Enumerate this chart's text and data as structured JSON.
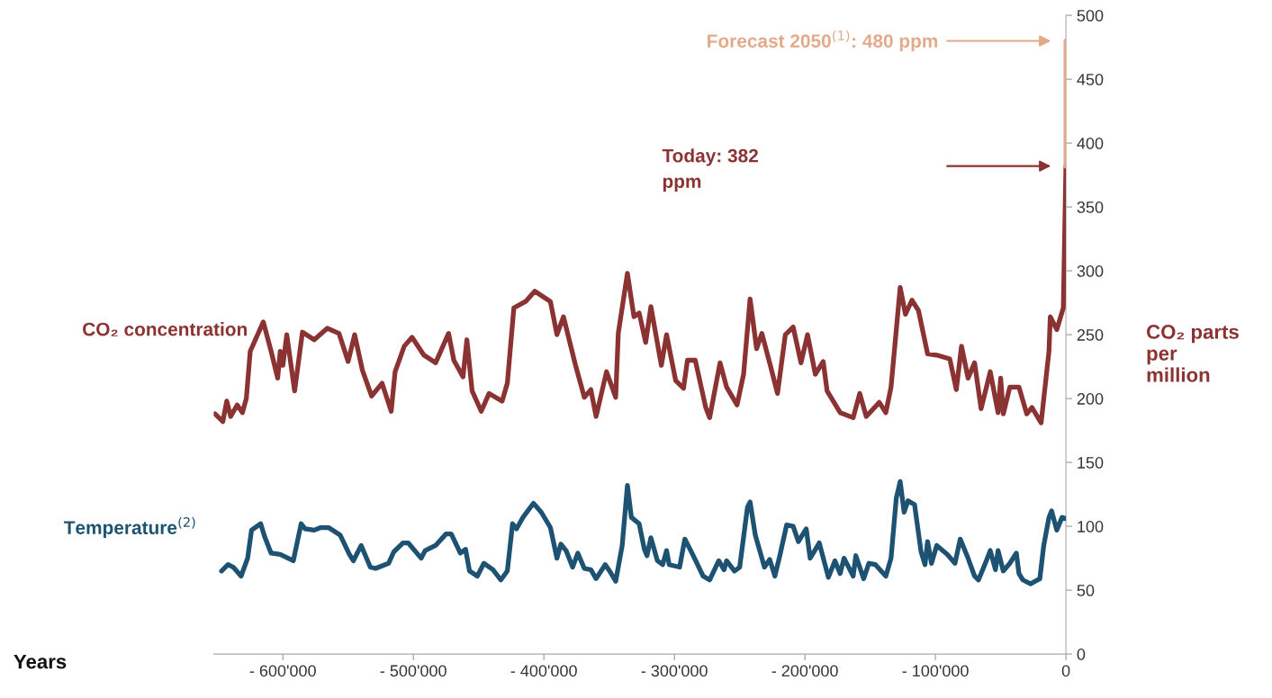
{
  "chart_data": {
    "type": "line",
    "ylabel": "CO₂ parts per million",
    "xlim": [
      -653000,
      0
    ],
    "xticks": [
      {
        "value": -600000,
        "label": "- 600'000"
      },
      {
        "value": -500000,
        "label": "- 500'000"
      },
      {
        "value": -400000,
        "label": "- 400'000"
      },
      {
        "value": -300000,
        "label": "- 300'000"
      },
      {
        "value": -200000,
        "label": "- 200'000"
      },
      {
        "value": -100000,
        "label": "- 100'000"
      },
      0
    ],
    "ylim": [
      0,
      500
    ],
    "yticks": [
      0,
      50,
      100,
      150,
      200,
      250,
      300,
      350,
      400,
      450,
      500
    ],
    "grid": false,
    "legend": false,
    "marker": "none",
    "line_style": "solid",
    "series": [
      {
        "name": "CO₂ concentration",
        "color": "#8b3232",
        "x": [
          -652000,
          -646000,
          -643000,
          -640000,
          -635000,
          -631000,
          -628000,
          -625000,
          -615000,
          -609000,
          -604000,
          -602000,
          -600000,
          -597000,
          -591000,
          -585000,
          -576000,
          -566000,
          -557000,
          -550000,
          -545000,
          -539000,
          -532000,
          -524000,
          -517000,
          -514000,
          -507000,
          -501000,
          -492000,
          -483000,
          -473000,
          -469000,
          -462000,
          -459000,
          -455000,
          -448000,
          -442000,
          -432000,
          -428000,
          -423000,
          -414000,
          -407000,
          -395000,
          -390000,
          -385000,
          -376000,
          -369000,
          -364000,
          -360000,
          -352000,
          -345000,
          -343000,
          -336000,
          -331000,
          -327000,
          -322000,
          -318000,
          -310000,
          -306000,
          -299000,
          -293000,
          -290000,
          -284000,
          -276000,
          -273000,
          -268000,
          -265000,
          -260000,
          -252000,
          -247000,
          -242000,
          -237000,
          -233000,
          -226000,
          -221000,
          -215000,
          -209000,
          -203000,
          -198000,
          -192000,
          -186000,
          -183000,
          -173000,
          -163000,
          -158000,
          -153000,
          -143000,
          -138000,
          -134000,
          -127000,
          -123000,
          -118000,
          -113000,
          -106000,
          -99000,
          -89000,
          -84000,
          -80000,
          -75000,
          -70000,
          -65000,
          -58000,
          -52000,
          -50000,
          -48000,
          -43000,
          -36000,
          -30000,
          -26000,
          -19000,
          -13000,
          -12000,
          -7000,
          -2000,
          0
        ],
        "values": [
          188,
          182,
          198,
          186,
          195,
          189,
          200,
          237,
          260,
          237,
          216,
          237,
          226,
          250,
          206,
          252,
          246,
          255,
          251,
          229,
          250,
          222,
          202,
          212,
          190,
          221,
          241,
          248,
          234,
          228,
          251,
          230,
          217,
          246,
          206,
          190,
          204,
          198,
          212,
          271,
          276,
          284,
          276,
          250,
          264,
          227,
          201,
          207,
          186,
          221,
          201,
          251,
          298,
          264,
          267,
          244,
          272,
          226,
          250,
          214,
          208,
          230,
          230,
          193,
          185,
          212,
          228,
          209,
          195,
          219,
          278,
          239,
          251,
          224,
          204,
          250,
          256,
          228,
          250,
          219,
          229,
          206,
          189,
          185,
          204,
          186,
          197,
          189,
          209,
          287,
          266,
          277,
          269,
          235,
          234,
          231,
          207,
          241,
          216,
          228,
          192,
          221,
          189,
          216,
          188,
          209,
          209,
          188,
          193,
          181,
          237,
          264,
          254,
          271,
          382
        ]
      },
      {
        "color": "#e2aa8a",
        "x": [
          0,
          0
        ],
        "values": [
          382,
          480
        ]
      },
      {
        "name": "Temperature$^{(2)}$",
        "color": "#1e5272",
        "x": [
          -647000,
          -642000,
          -638000,
          -632000,
          -627000,
          -624000,
          -617000,
          -614000,
          -609000,
          -602000,
          -592000,
          -586000,
          -583000,
          -576000,
          -571000,
          -565000,
          -556000,
          -549000,
          -546000,
          -540000,
          -533000,
          -529000,
          -519000,
          -515000,
          -508000,
          -504000,
          -494000,
          -491000,
          -483000,
          -475000,
          -471000,
          -464000,
          -460000,
          -457000,
          -451000,
          -446000,
          -439000,
          -433000,
          -428000,
          -424000,
          -421000,
          -416000,
          -408000,
          -402000,
          -395000,
          -390000,
          -387000,
          -383000,
          -378000,
          -374000,
          -369000,
          -364000,
          -360000,
          -353000,
          -349000,
          -345000,
          -340000,
          -336000,
          -333000,
          -327000,
          -323000,
          -321000,
          -318000,
          -313000,
          -309000,
          -306000,
          -304000,
          -296000,
          -292000,
          -286000,
          -278000,
          -273000,
          -266000,
          -262000,
          -260000,
          -254000,
          -250000,
          -244000,
          -242000,
          -238000,
          -231000,
          -227000,
          -223000,
          -219000,
          -214000,
          -209000,
          -205000,
          -199000,
          -196000,
          -189000,
          -182000,
          -177000,
          -173000,
          -170000,
          -163000,
          -161000,
          -155000,
          -151000,
          -146000,
          -138000,
          -134000,
          -130000,
          -127000,
          -124000,
          -121000,
          -116000,
          -111000,
          -108000,
          -106000,
          -103000,
          -99000,
          -91000,
          -85000,
          -81000,
          -75000,
          -70000,
          -67000,
          -61000,
          -58000,
          -54000,
          -52000,
          -48000,
          -43000,
          -38000,
          -36000,
          -33000,
          -27000,
          -20000,
          -17000,
          -13000,
          -11000,
          -7000,
          -3000,
          0
        ],
        "values": [
          65,
          70,
          68,
          61,
          75,
          97,
          102,
          92,
          79,
          78,
          73,
          102,
          98,
          97,
          99,
          99,
          93,
          78,
          73,
          85,
          68,
          67,
          71,
          80,
          87,
          87,
          75,
          81,
          85,
          94,
          94,
          79,
          82,
          65,
          61,
          71,
          66,
          58,
          65,
          102,
          98,
          107,
          118,
          111,
          99,
          75,
          86,
          81,
          68,
          79,
          67,
          66,
          59,
          70,
          64,
          57,
          85,
          132,
          107,
          102,
          82,
          77,
          91,
          73,
          70,
          81,
          70,
          68,
          90,
          78,
          61,
          58,
          73,
          66,
          73,
          65,
          68,
          115,
          119,
          93,
          68,
          74,
          61,
          78,
          101,
          100,
          88,
          98,
          75,
          87,
          60,
          73,
          63,
          75,
          61,
          77,
          59,
          71,
          70,
          61,
          75,
          122,
          135,
          111,
          120,
          117,
          80,
          70,
          88,
          71,
          85,
          78,
          71,
          90,
          75,
          61,
          58,
          73,
          81,
          66,
          81,
          65,
          71,
          79,
          63,
          58,
          55,
          59,
          85,
          107,
          112,
          97,
          107,
          106
        ]
      }
    ],
    "annotations": [
      "Forecast 2050$^{(1)}$: 480 ppm",
      "Today: 382 ppm",
      "Years"
    ]
  }
}
